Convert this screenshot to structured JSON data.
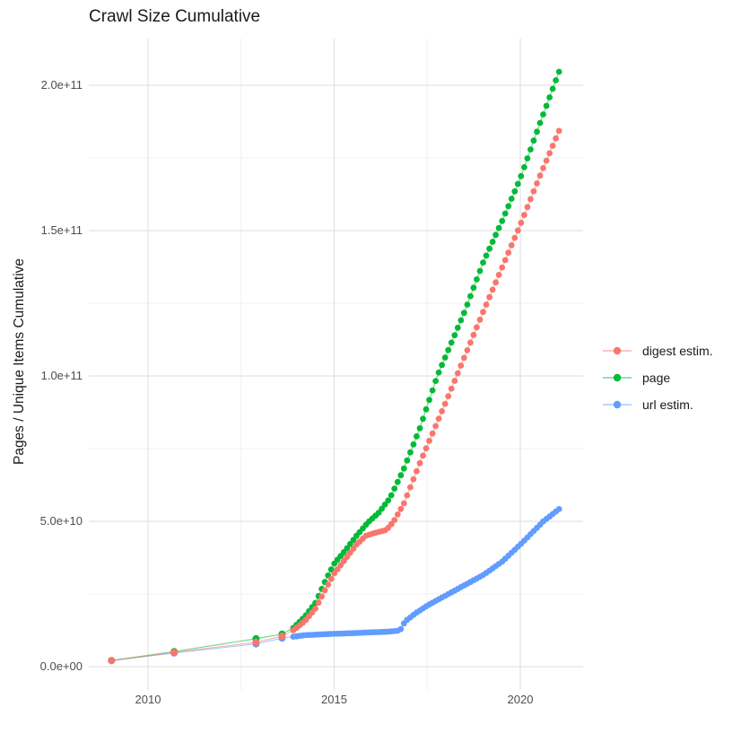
{
  "chart": {
    "title": "Crawl Size Cumulative",
    "ylabel": "Pages / Unique Items Cumulative"
  },
  "chart_data": {
    "type": "scatter",
    "title": "Crawl Size Cumulative",
    "xlabel": "",
    "ylabel": "Pages / Unique Items Cumulative",
    "x_unit": "year",
    "y_values_in": "billions of pages / unique items (cumulative)",
    "xlim": [
      2008.4,
      2021.7
    ],
    "ylim_billions": [
      -8,
      216
    ],
    "grid": true,
    "legend_position": "right",
    "x_major_ticks": [
      {
        "label": "2010",
        "value": 2010
      },
      {
        "label": "2015",
        "value": 2015
      },
      {
        "label": "2020",
        "value": 2020
      }
    ],
    "x_minor_gridlines": [
      2012.5,
      2017.5
    ],
    "y_major_ticks": [
      {
        "label": "0.0e+00",
        "value": 0
      },
      {
        "label": "5.0e+10",
        "value": 50
      },
      {
        "label": "1.0e+11",
        "value": 100
      },
      {
        "label": "1.5e+11",
        "value": 150
      },
      {
        "label": "2.0e+11",
        "value": 200
      }
    ],
    "y_minor_gridlines": [
      25,
      75,
      125,
      175
    ],
    "dot_interval_years": 0.085,
    "series": [
      {
        "name": "digest estim.",
        "color": "#F8766D",
        "sparse_points": [
          [
            2009.02,
            2.1
          ],
          [
            2010.7,
            4.9
          ],
          [
            2012.9,
            8.4
          ],
          [
            2013.6,
            10.5
          ]
        ],
        "curve_points": [
          [
            2013.9,
            12.5
          ],
          [
            2014.2,
            15.5
          ],
          [
            2014.5,
            20
          ],
          [
            2014.78,
            27
          ],
          [
            2015.0,
            32
          ],
          [
            2015.3,
            37
          ],
          [
            2015.6,
            42
          ],
          [
            2015.85,
            45
          ],
          [
            2016.1,
            46
          ],
          [
            2016.4,
            47
          ],
          [
            2016.6,
            50
          ],
          [
            2016.87,
            56
          ],
          [
            2017.3,
            70
          ],
          [
            2018.0,
            91
          ],
          [
            2018.29,
            100
          ],
          [
            2019.0,
            122
          ],
          [
            2019.5,
            137
          ],
          [
            2020.0,
            152
          ],
          [
            2020.5,
            168
          ],
          [
            2021.08,
            185.5
          ]
        ]
      },
      {
        "name": "page",
        "color": "#00BA38",
        "sparse_points": [
          [
            2009.02,
            2.1
          ],
          [
            2010.7,
            5.2
          ],
          [
            2012.9,
            9.6
          ],
          [
            2013.6,
            11.2
          ]
        ],
        "curve_points": [
          [
            2013.9,
            13.3
          ],
          [
            2014.2,
            17
          ],
          [
            2014.5,
            22
          ],
          [
            2014.78,
            30
          ],
          [
            2015.0,
            35.4
          ],
          [
            2015.3,
            40
          ],
          [
            2015.6,
            45
          ],
          [
            2015.9,
            49.5
          ],
          [
            2016.2,
            53
          ],
          [
            2016.5,
            58
          ],
          [
            2016.87,
            68
          ],
          [
            2017.3,
            82
          ],
          [
            2017.77,
            100
          ],
          [
            2018.5,
            122
          ],
          [
            2019.0,
            139
          ],
          [
            2019.5,
            153
          ],
          [
            2020.0,
            168
          ],
          [
            2020.5,
            186
          ],
          [
            2021.08,
            206
          ]
        ]
      },
      {
        "name": "url estim.",
        "color": "#619CFF",
        "sparse_points": [
          [
            2009.02,
            2.1
          ],
          [
            2010.7,
            4.7
          ],
          [
            2012.9,
            7.8
          ],
          [
            2013.6,
            9.8
          ]
        ],
        "curve_points": [
          [
            2013.9,
            10.3
          ],
          [
            2014.2,
            10.8
          ],
          [
            2014.5,
            11.0
          ],
          [
            2015.0,
            11.3
          ],
          [
            2015.5,
            11.5
          ],
          [
            2016.0,
            11.8
          ],
          [
            2016.4,
            12.0
          ],
          [
            2016.7,
            12.3
          ],
          [
            2016.8,
            13.0
          ],
          [
            2016.9,
            15.5
          ],
          [
            2017.2,
            18.5
          ],
          [
            2017.5,
            21
          ],
          [
            2018.0,
            24.5
          ],
          [
            2018.6,
            28.7
          ],
          [
            2019.0,
            31.5
          ],
          [
            2019.5,
            36
          ],
          [
            2020.0,
            42
          ],
          [
            2020.62,
            50
          ],
          [
            2021.08,
            54.6
          ]
        ]
      }
    ],
    "style": {
      "major_grid_color": "#e3e3e3",
      "minor_grid_color": "#f0f0f0",
      "background": "#ffffff"
    }
  }
}
